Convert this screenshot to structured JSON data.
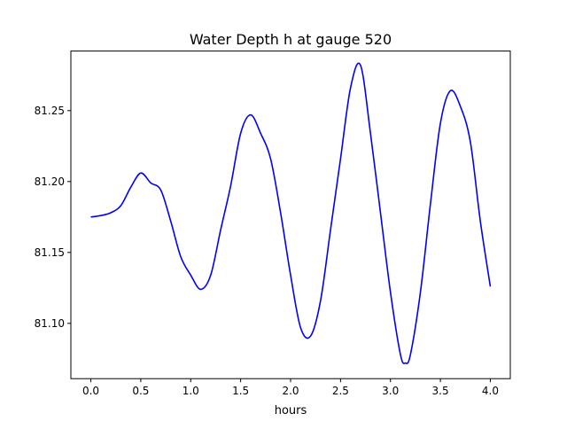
{
  "chart_data": {
    "type": "line",
    "title": "Water Depth h at gauge 520",
    "xlabel": "hours",
    "ylabel": "",
    "xlim": [
      -0.2,
      4.2
    ],
    "ylim": [
      81.061,
      81.292
    ],
    "xticks": [
      0.0,
      0.5,
      1.0,
      1.5,
      2.0,
      2.5,
      3.0,
      3.5,
      4.0
    ],
    "xtick_labels": [
      "0.0",
      "0.5",
      "1.0",
      "1.5",
      "2.0",
      "2.5",
      "3.0",
      "3.5",
      "4.0"
    ],
    "yticks": [
      81.1,
      81.15,
      81.2,
      81.25
    ],
    "ytick_labels": [
      "81.10",
      "81.15",
      "81.20",
      "81.25"
    ],
    "grid": false,
    "series": [
      {
        "name": "h",
        "color": "#0000ff",
        "x": [
          0.0,
          0.1,
          0.2,
          0.3,
          0.4,
          0.5,
          0.6,
          0.7,
          0.8,
          0.9,
          1.0,
          1.1,
          1.2,
          1.3,
          1.4,
          1.5,
          1.6,
          1.7,
          1.8,
          1.9,
          2.0,
          2.1,
          2.2,
          2.3,
          2.4,
          2.5,
          2.6,
          2.7,
          2.8,
          2.9,
          3.0,
          3.1,
          3.15,
          3.2,
          3.3,
          3.4,
          3.5,
          3.6,
          3.7,
          3.8,
          3.9,
          4.0
        ],
        "y": [
          81.175,
          81.176,
          81.178,
          81.183,
          81.196,
          81.206,
          81.199,
          81.194,
          81.172,
          81.147,
          81.134,
          81.124,
          81.134,
          81.166,
          81.197,
          81.234,
          81.247,
          81.234,
          81.216,
          81.178,
          81.134,
          81.097,
          81.091,
          81.116,
          81.166,
          81.216,
          81.266,
          81.282,
          81.234,
          81.178,
          81.122,
          81.078,
          81.072,
          81.078,
          81.122,
          81.184,
          81.241,
          81.264,
          81.253,
          81.228,
          81.172,
          81.126
        ]
      }
    ]
  }
}
